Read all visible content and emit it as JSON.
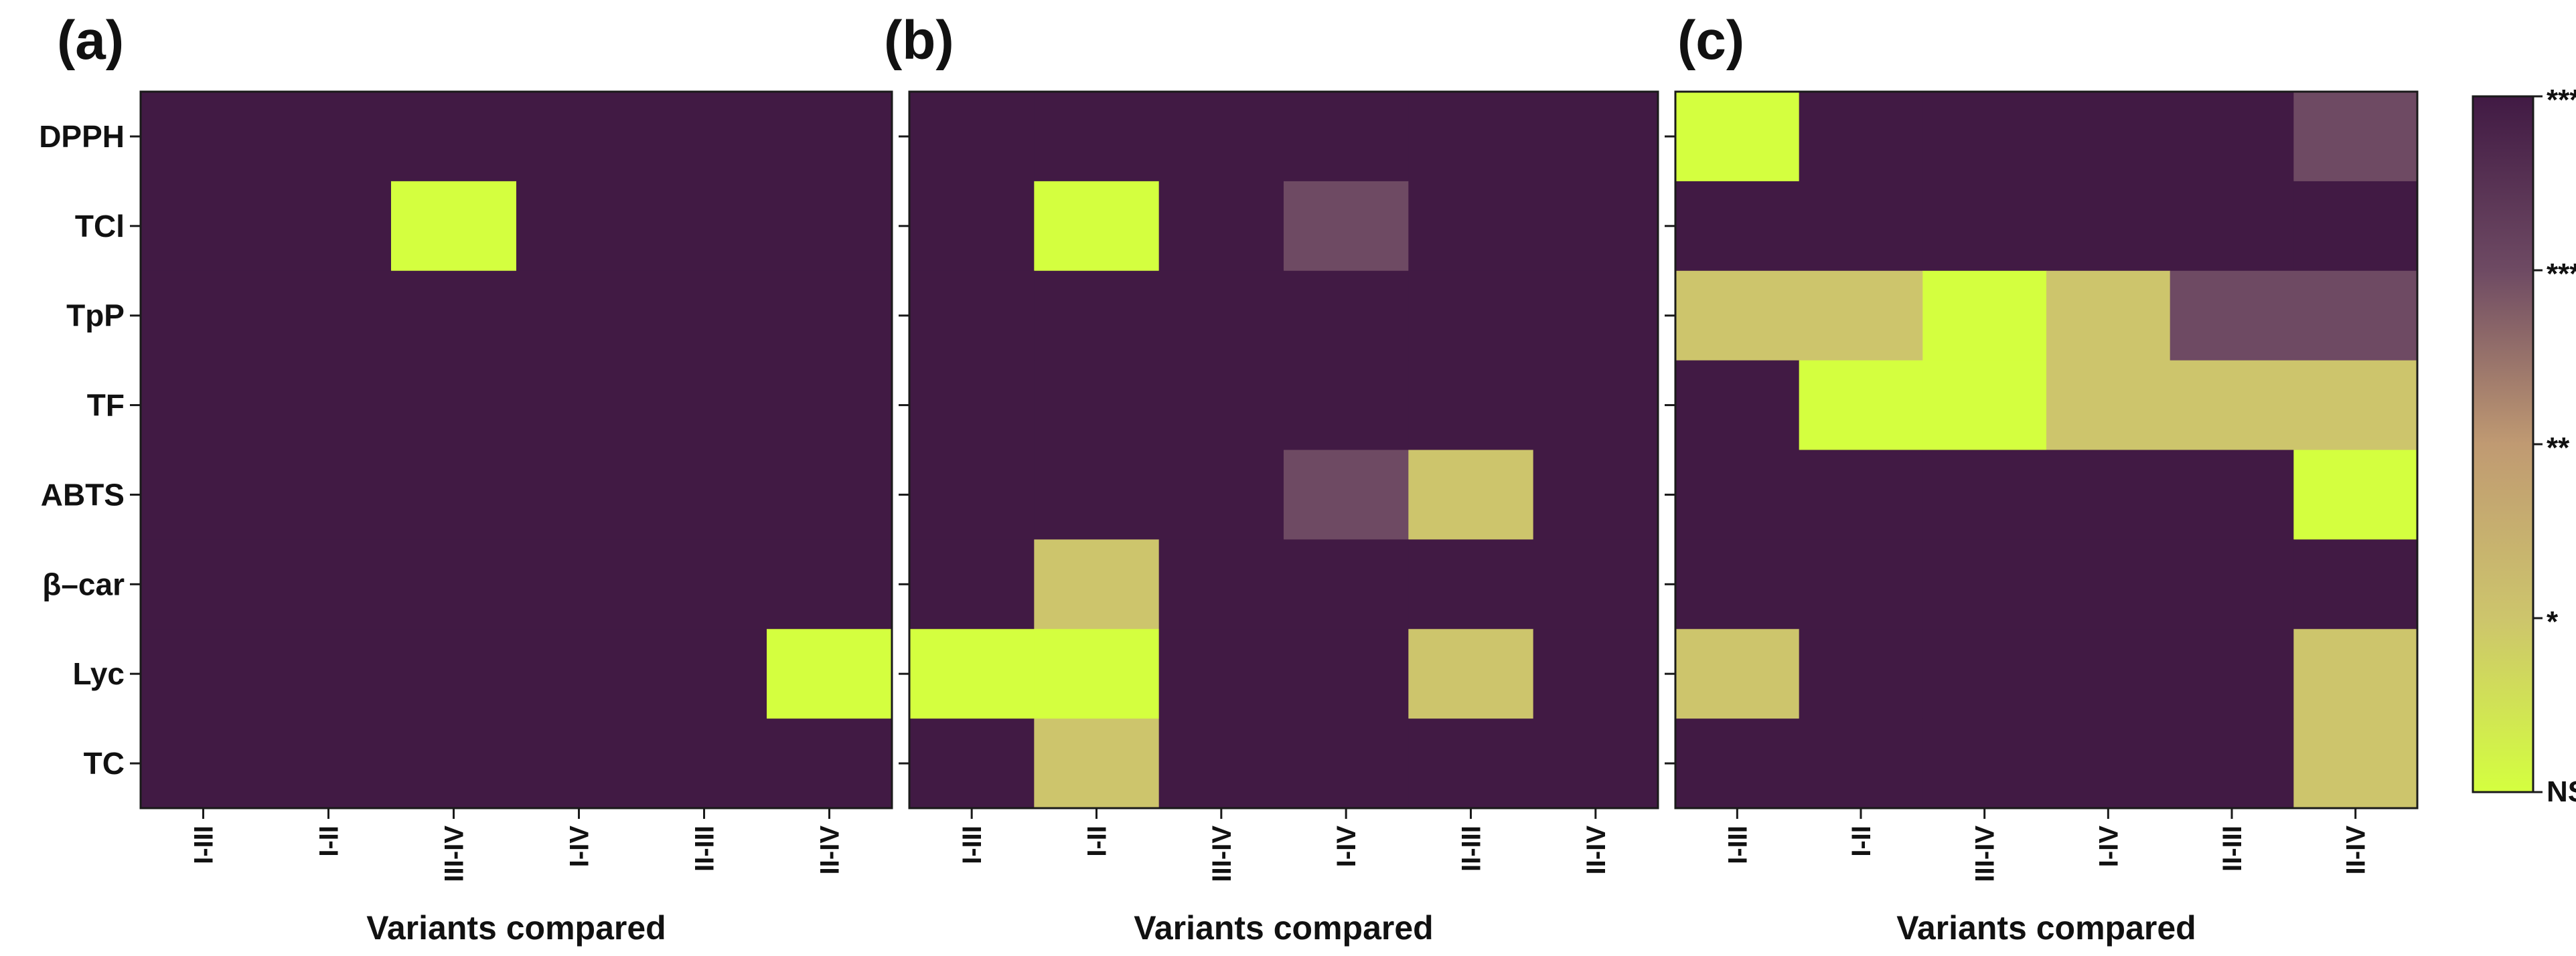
{
  "chart_data": [
    {
      "type": "heatmap",
      "panel": "(a)",
      "xlabel": "Variants compared",
      "x_categories": [
        "I-III",
        "I-II",
        "III-IV",
        "I-IV",
        "II-III",
        "II-IV"
      ],
      "y_categories": [
        "DPPH",
        "TCl",
        "TpP",
        "TF",
        "ABTS",
        "β–car",
        "Lyc",
        "TC"
      ],
      "values": [
        [
          4,
          4,
          4,
          4,
          4,
          4
        ],
        [
          4,
          4,
          0,
          4,
          4,
          4
        ],
        [
          4,
          4,
          4,
          4,
          4,
          4
        ],
        [
          4,
          4,
          4,
          4,
          4,
          4
        ],
        [
          4,
          4,
          4,
          4,
          4,
          4
        ],
        [
          4,
          4,
          4,
          4,
          4,
          4
        ],
        [
          4,
          4,
          4,
          4,
          4,
          0
        ],
        [
          4,
          4,
          4,
          4,
          4,
          4
        ]
      ]
    },
    {
      "type": "heatmap",
      "panel": "(b)",
      "xlabel": "Variants compared",
      "x_categories": [
        "I-III",
        "I-II",
        "III-IV",
        "I-IV",
        "II-III",
        "II-IV"
      ],
      "y_categories": [
        "DPPH",
        "TCl",
        "TpP",
        "TF",
        "ABTS",
        "β–car",
        "Lyc",
        "TC"
      ],
      "values": [
        [
          4,
          4,
          4,
          4,
          4,
          4
        ],
        [
          4,
          0,
          4,
          3,
          4,
          4
        ],
        [
          4,
          4,
          4,
          4,
          4,
          4
        ],
        [
          4,
          4,
          4,
          4,
          4,
          4
        ],
        [
          4,
          4,
          4,
          3,
          1,
          4
        ],
        [
          4,
          1,
          4,
          4,
          4,
          4
        ],
        [
          0,
          0,
          4,
          4,
          1,
          4
        ],
        [
          4,
          1,
          4,
          4,
          4,
          4
        ]
      ]
    },
    {
      "type": "heatmap",
      "panel": "(c)",
      "xlabel": "Variants compared",
      "x_categories": [
        "I-III",
        "I-II",
        "III-IV",
        "I-IV",
        "II-III",
        "II-IV"
      ],
      "y_categories": [
        "DPPH",
        "TCl",
        "TpP",
        "TF",
        "ABTS",
        "β–car",
        "Lyc",
        "TC"
      ],
      "values": [
        [
          0,
          4,
          4,
          4,
          4,
          3
        ],
        [
          4,
          4,
          4,
          4,
          4,
          4
        ],
        [
          1,
          1,
          0,
          1,
          3,
          3
        ],
        [
          4,
          0,
          0,
          1,
          1,
          1
        ],
        [
          4,
          4,
          4,
          4,
          4,
          0
        ],
        [
          4,
          4,
          4,
          4,
          4,
          4
        ],
        [
          1,
          4,
          4,
          4,
          4,
          1
        ],
        [
          4,
          4,
          4,
          4,
          4,
          1
        ]
      ]
    }
  ],
  "colorbar": {
    "levels": [
      "NS",
      "*",
      "**",
      "***",
      "****"
    ],
    "colors": [
      "#d4ff3f",
      "#cdc56c",
      "#c09a72",
      "#6e4a63",
      "#411a44"
    ]
  }
}
